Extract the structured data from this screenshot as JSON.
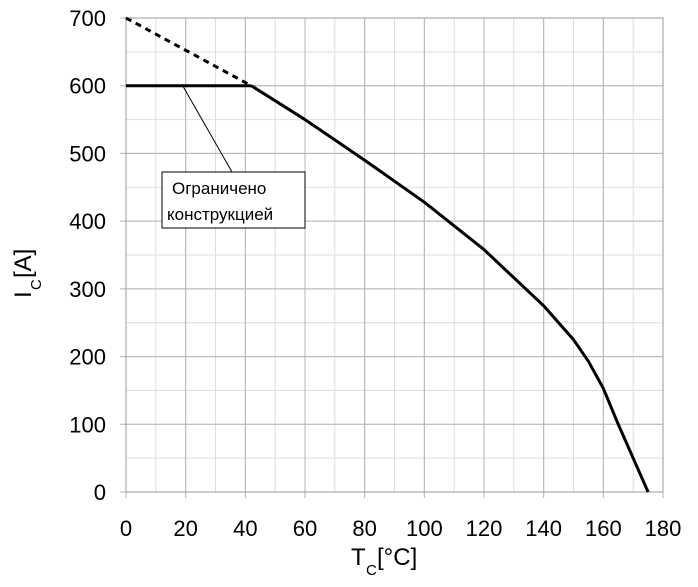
{
  "chart_data": {
    "type": "line",
    "xlabel": {
      "main": "T",
      "sub": "C",
      "unit": "[°C]"
    },
    "ylabel": {
      "main": "I",
      "sub": "C",
      "unit": "[A]"
    },
    "xlim": [
      0,
      180
    ],
    "ylim": [
      0,
      700
    ],
    "x_ticks": [
      0,
      20,
      40,
      60,
      80,
      100,
      120,
      140,
      160,
      180
    ],
    "y_ticks": [
      0,
      100,
      200,
      300,
      400,
      500,
      600,
      700
    ],
    "x_minor_step": 10,
    "y_minor_step": 50,
    "grid": true,
    "series": [
      {
        "style": "solid",
        "x": [
          0,
          42
        ],
        "y": [
          600,
          600
        ]
      },
      {
        "style": "dashed",
        "x": [
          0,
          42
        ],
        "y": [
          700,
          600
        ]
      },
      {
        "style": "solid",
        "x": [
          42,
          60,
          80,
          100,
          120,
          140,
          150,
          155,
          160,
          165,
          170,
          175
        ],
        "y": [
          600,
          550,
          490,
          428,
          358,
          275,
          225,
          193,
          153,
          100,
          50,
          0
        ]
      }
    ],
    "annotations": [
      {
        "lines": [
          "Ограничено",
          "конструкцией"
        ],
        "points_to": [
          19,
          600
        ]
      }
    ]
  }
}
